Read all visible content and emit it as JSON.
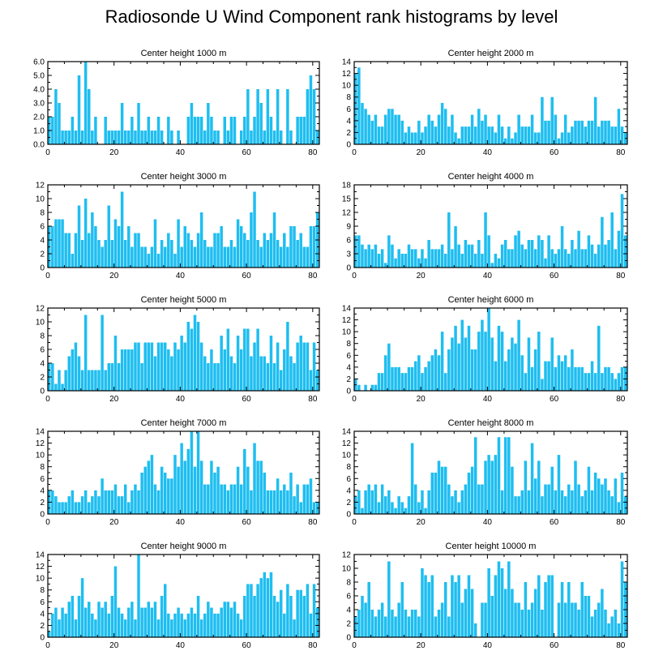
{
  "title": "Radiosonde U Wind Component rank histograms by level",
  "bar_color": "#1EBEF0",
  "chart_data": [
    {
      "type": "bar",
      "title": "Center height 1000 m",
      "xlim": [
        0,
        82
      ],
      "ylim": [
        0,
        6
      ],
      "xticks": [
        0,
        20,
        40,
        60,
        80
      ],
      "xtick_labels": [
        "0",
        "20",
        "40",
        "60",
        "80"
      ],
      "yticks": [
        0,
        1,
        2,
        3,
        4,
        5,
        6
      ],
      "ytick_labels": [
        "0.0",
        "1.0",
        "2.0",
        "3.0",
        "4.0",
        "5.0",
        "6.0"
      ],
      "x_start": 0,
      "values": [
        2,
        2,
        4,
        3,
        1,
        1,
        1,
        2,
        1,
        5,
        1,
        6,
        4,
        1,
        2,
        0,
        0,
        2,
        1,
        1,
        1,
        1,
        3,
        1,
        1,
        2,
        1,
        3,
        1,
        1,
        2,
        1,
        1,
        2,
        1,
        0,
        2,
        1,
        0,
        1,
        0,
        0,
        2,
        3,
        2,
        2,
        2,
        1,
        3,
        2,
        1,
        1,
        0,
        2,
        1,
        2,
        2,
        0,
        1,
        2,
        4,
        1,
        2,
        4,
        3,
        1,
        4,
        2,
        1,
        4,
        1,
        0,
        4,
        1,
        0,
        2,
        2,
        2,
        4,
        5,
        4,
        1
      ]
    },
    {
      "type": "bar",
      "title": "Center height 2000 m",
      "xlim": [
        0,
        82
      ],
      "ylim": [
        0,
        14
      ],
      "xticks": [
        0,
        20,
        40,
        60,
        80
      ],
      "xtick_labels": [
        "0",
        "20",
        "40",
        "60",
        "80"
      ],
      "yticks": [
        0,
        2,
        4,
        6,
        8,
        10,
        12,
        14
      ],
      "ytick_labels": [
        "0",
        "2",
        "4",
        "6",
        "8",
        "10",
        "12",
        "14"
      ],
      "x_start": 0,
      "values": [
        12,
        13,
        7,
        6,
        5,
        4,
        5,
        3,
        3,
        5,
        6,
        6,
        5,
        5,
        4,
        2,
        3,
        2,
        2,
        4,
        2,
        3,
        5,
        4,
        3,
        5,
        7,
        6,
        3,
        5,
        2,
        1,
        3,
        3,
        3,
        5,
        3,
        6,
        4,
        5,
        3,
        3,
        2,
        5,
        3,
        1,
        3,
        1,
        2,
        5,
        3,
        3,
        3,
        5,
        2,
        2,
        8,
        4,
        4,
        8,
        5,
        1,
        2,
        5,
        2,
        3,
        4,
        4,
        4,
        3,
        4,
        4,
        8,
        3,
        4,
        4,
        4,
        3,
        3,
        6,
        3,
        2
      ]
    },
    {
      "type": "bar",
      "title": "Center height 3000 m",
      "xlim": [
        0,
        82
      ],
      "ylim": [
        0,
        12
      ],
      "xticks": [
        0,
        20,
        40,
        60,
        80
      ],
      "xtick_labels": [
        "0",
        "20",
        "40",
        "60",
        "80"
      ],
      "yticks": [
        0,
        2,
        4,
        6,
        8,
        10,
        12
      ],
      "ytick_labels": [
        "0",
        "2",
        "4",
        "6",
        "8",
        "10",
        "12"
      ],
      "x_start": 0,
      "values": [
        6,
        6,
        7,
        7,
        7,
        5,
        5,
        2,
        5,
        9,
        4,
        10,
        5,
        8,
        6,
        4,
        3,
        4,
        9,
        4,
        7,
        6,
        11,
        4,
        6,
        3,
        5,
        5,
        3,
        3,
        2,
        3,
        7,
        2,
        4,
        3,
        5,
        4,
        2,
        7,
        3,
        6,
        5,
        4,
        3,
        5,
        8,
        4,
        3,
        3,
        5,
        5,
        6,
        3,
        3,
        4,
        3,
        7,
        6,
        5,
        4,
        8,
        11,
        4,
        3,
        5,
        4,
        5,
        8,
        4,
        3,
        5,
        3,
        6,
        6,
        4,
        5,
        3,
        3,
        6,
        6,
        8
      ]
    },
    {
      "type": "bar",
      "title": "Center height 4000 m",
      "xlim": [
        0,
        82
      ],
      "ylim": [
        0,
        18
      ],
      "xticks": [
        0,
        20,
        40,
        60,
        80
      ],
      "xtick_labels": [
        "0",
        "20",
        "40",
        "60",
        "80"
      ],
      "yticks": [
        0,
        3,
        6,
        9,
        12,
        15,
        18
      ],
      "ytick_labels": [
        "0",
        "3",
        "6",
        "9",
        "12",
        "15",
        "18"
      ],
      "x_start": 0,
      "values": [
        7,
        7,
        5,
        4,
        5,
        4,
        5,
        3,
        4,
        1,
        7,
        5,
        2,
        4,
        3,
        3,
        5,
        4,
        4,
        2,
        4,
        2,
        6,
        4,
        4,
        4,
        5,
        3,
        12,
        4,
        9,
        5,
        3,
        6,
        5,
        5,
        3,
        6,
        3,
        12,
        7,
        1,
        3,
        2,
        5,
        6,
        4,
        4,
        7,
        8,
        5,
        4,
        6,
        6,
        4,
        7,
        6,
        2,
        7,
        4,
        3,
        4,
        9,
        4,
        3,
        6,
        4,
        8,
        4,
        4,
        7,
        5,
        3,
        5,
        11,
        5,
        6,
        12,
        4,
        8,
        16,
        7,
        8
      ]
    },
    {
      "type": "bar",
      "title": "Center height 5000 m",
      "xlim": [
        0,
        82
      ],
      "ylim": [
        0,
        12
      ],
      "xticks": [
        0,
        20,
        40,
        60,
        80
      ],
      "xtick_labels": [
        "0",
        "20",
        "40",
        "60",
        "80"
      ],
      "yticks": [
        0,
        2,
        4,
        6,
        8,
        10,
        12
      ],
      "ytick_labels": [
        "0",
        "2",
        "4",
        "6",
        "8",
        "10",
        "12"
      ],
      "x_start": 0,
      "values": [
        4,
        4,
        1,
        3,
        1,
        3,
        5,
        6,
        7,
        5,
        3,
        11,
        3,
        3,
        3,
        3,
        11,
        3,
        4,
        4,
        8,
        4,
        6,
        6,
        6,
        6,
        7,
        7,
        4,
        7,
        7,
        7,
        5,
        7,
        7,
        7,
        6,
        5,
        7,
        6,
        8,
        7,
        10,
        9,
        11,
        10,
        7,
        5,
        4,
        6,
        4,
        4,
        8,
        6,
        9,
        5,
        4,
        8,
        6,
        9,
        9,
        5,
        7,
        9,
        5,
        5,
        4,
        8,
        4,
        7,
        3,
        6,
        10,
        5,
        4,
        7,
        8,
        7,
        7,
        3,
        7,
        3
      ]
    },
    {
      "type": "bar",
      "title": "Center height 6000 m",
      "xlim": [
        0,
        82
      ],
      "ylim": [
        0,
        14
      ],
      "xticks": [
        0,
        20,
        40,
        60,
        80
      ],
      "xtick_labels": [
        "0",
        "20",
        "40",
        "60",
        "80"
      ],
      "yticks": [
        0,
        2,
        4,
        6,
        8,
        10,
        12,
        14
      ],
      "ytick_labels": [
        "0",
        "2",
        "4",
        "6",
        "8",
        "10",
        "12",
        "14"
      ],
      "x_start": 0,
      "values": [
        2,
        1,
        0,
        1,
        0,
        1,
        1,
        3,
        3,
        6,
        8,
        4,
        4,
        4,
        3,
        3,
        4,
        4,
        5,
        6,
        3,
        4,
        5,
        6,
        7,
        6,
        10,
        3,
        7,
        9,
        11,
        8,
        12,
        9,
        11,
        7,
        7,
        10,
        12,
        10,
        14,
        9,
        5,
        11,
        10,
        5,
        7,
        9,
        8,
        12,
        6,
        3,
        9,
        4,
        7,
        10,
        2,
        5,
        5,
        9,
        4,
        6,
        5,
        6,
        4,
        7,
        4,
        4,
        4,
        3,
        3,
        5,
        3,
        11,
        3,
        4,
        4,
        3,
        2,
        3,
        4,
        4,
        6
      ]
    },
    {
      "type": "bar",
      "title": "Center height 7000 m",
      "xlim": [
        0,
        82
      ],
      "ylim": [
        0,
        14
      ],
      "xticks": [
        0,
        20,
        40,
        60,
        80
      ],
      "xtick_labels": [
        "0",
        "20",
        "40",
        "60",
        "80"
      ],
      "yticks": [
        0,
        2,
        4,
        6,
        8,
        10,
        12,
        14
      ],
      "ytick_labels": [
        "0",
        "2",
        "4",
        "6",
        "8",
        "10",
        "12",
        "14"
      ],
      "x_start": 0,
      "values": [
        4,
        4,
        3,
        2,
        2,
        2,
        3,
        4,
        2,
        2,
        3,
        4,
        2,
        3,
        4,
        3,
        6,
        4,
        4,
        4,
        5,
        3,
        3,
        5,
        2,
        4,
        5,
        4,
        7,
        8,
        9,
        10,
        5,
        4,
        8,
        7,
        6,
        6,
        10,
        8,
        12,
        9,
        11,
        14,
        8,
        14,
        9,
        5,
        5,
        9,
        7,
        8,
        5,
        5,
        4,
        5,
        5,
        8,
        5,
        11,
        8,
        4,
        12,
        9,
        9,
        7,
        4,
        4,
        4,
        6,
        4,
        5,
        4,
        7,
        3,
        5,
        2,
        5,
        5,
        6,
        2,
        2
      ]
    },
    {
      "type": "bar",
      "title": "Center height 8000 m",
      "xlim": [
        0,
        82
      ],
      "ylim": [
        0,
        14
      ],
      "xticks": [
        0,
        20,
        40,
        60,
        80
      ],
      "xtick_labels": [
        "0",
        "20",
        "40",
        "60",
        "80"
      ],
      "yticks": [
        0,
        2,
        4,
        6,
        8,
        10,
        12,
        14
      ],
      "ytick_labels": [
        "0",
        "2",
        "4",
        "6",
        "8",
        "10",
        "12",
        "14"
      ],
      "x_start": 0,
      "values": [
        3,
        4,
        1,
        4,
        5,
        4,
        5,
        2,
        5,
        3,
        4,
        2,
        1,
        3,
        2,
        1,
        3,
        12,
        5,
        2,
        4,
        1,
        4,
        7,
        7,
        9,
        8,
        8,
        5,
        3,
        4,
        2,
        4,
        5,
        7,
        8,
        13,
        5,
        5,
        9,
        10,
        9,
        10,
        13,
        4,
        13,
        13,
        8,
        3,
        3,
        4,
        9,
        4,
        12,
        6,
        9,
        3,
        5,
        5,
        8,
        4,
        10,
        4,
        3,
        5,
        4,
        9,
        5,
        3,
        4,
        8,
        4,
        7,
        6,
        5,
        6,
        4,
        3,
        6,
        2,
        7,
        3
      ]
    },
    {
      "type": "bar",
      "title": "Center height 9000 m",
      "xlim": [
        0,
        82
      ],
      "ylim": [
        0,
        14
      ],
      "xticks": [
        0,
        20,
        40,
        60,
        80
      ],
      "xtick_labels": [
        "0",
        "20",
        "40",
        "60",
        "80"
      ],
      "yticks": [
        0,
        2,
        4,
        6,
        8,
        10,
        12,
        14
      ],
      "ytick_labels": [
        "0",
        "2",
        "4",
        "6",
        "8",
        "10",
        "12",
        "14"
      ],
      "x_start": 0,
      "values": [
        1,
        4,
        5,
        3,
        5,
        4,
        6,
        7,
        3,
        7,
        10,
        5,
        6,
        4,
        3,
        6,
        5,
        6,
        4,
        7,
        12,
        5,
        4,
        3,
        5,
        6,
        3,
        14,
        5,
        5,
        6,
        5,
        6,
        3,
        7,
        9,
        4,
        3,
        4,
        5,
        4,
        3,
        4,
        5,
        4,
        7,
        3,
        4,
        6,
        5,
        4,
        4,
        5,
        6,
        6,
        5,
        6,
        4,
        3,
        7,
        9,
        9,
        7,
        9,
        10,
        11,
        10,
        11,
        7,
        6,
        8,
        4,
        9,
        7,
        3,
        8,
        8,
        7,
        9,
        4,
        9,
        5
      ]
    },
    {
      "type": "bar",
      "title": "Center height 10000 m",
      "xlim": [
        0,
        82
      ],
      "ylim": [
        0,
        12
      ],
      "xticks": [
        0,
        20,
        40,
        60,
        80
      ],
      "xtick_labels": [
        "0",
        "20",
        "40",
        "60",
        "80"
      ],
      "yticks": [
        0,
        2,
        4,
        6,
        8,
        10,
        12
      ],
      "ytick_labels": [
        "0",
        "2",
        "4",
        "6",
        "8",
        "10",
        "12"
      ],
      "x_start": 0,
      "values": [
        3,
        4,
        6,
        5,
        8,
        4,
        3,
        4,
        5,
        3,
        11,
        4,
        3,
        5,
        8,
        4,
        3,
        4,
        4,
        3,
        10,
        9,
        8,
        9,
        3,
        4,
        5,
        8,
        3,
        9,
        8,
        9,
        5,
        7,
        9,
        7,
        2,
        0,
        5,
        5,
        10,
        6,
        9,
        11,
        10,
        7,
        11,
        7,
        5,
        5,
        4,
        8,
        4,
        5,
        7,
        9,
        4,
        8,
        9,
        9,
        0,
        5,
        8,
        5,
        8,
        5,
        5,
        4,
        8,
        6,
        6,
        3,
        4,
        5,
        7,
        4,
        2,
        3,
        4,
        2,
        11,
        8
      ]
    }
  ]
}
